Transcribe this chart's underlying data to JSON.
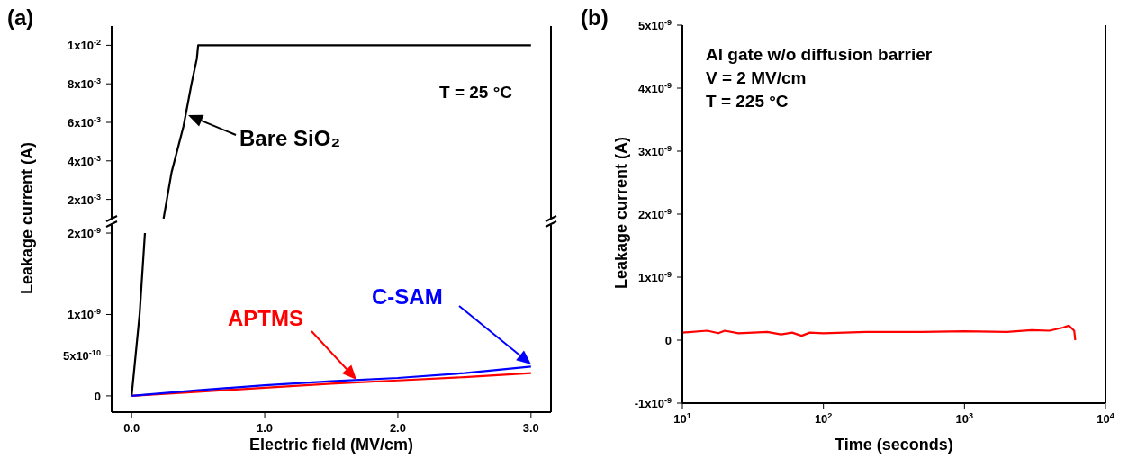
{
  "chart_data": [
    {
      "type": "line",
      "title": "(a)",
      "annotations": [
        "T = 25 °C"
      ],
      "xlim": [
        -0.15,
        3.15
      ],
      "ylim": [
        0.001,
        0.011
      ],
      "yticks": [
        {
          "value": 0.002,
          "label": "2x10$^{-3}$"
        },
        {
          "value": 0.004,
          "label": "4x10$^{-3}$"
        },
        {
          "value": 0.006,
          "label": "6x10$^{-3}$"
        },
        {
          "value": 0.008,
          "label": "8x10$^{-3}$"
        },
        {
          "value": 0.01,
          "label": "1x10$^{-2}$"
        }
      ],
      "tick_labels": "y",
      "series": [
        {
          "name": "Bare SiO₂",
          "color": "#000000",
          "x": [
            0.24,
            0.3,
            0.39,
            0.45,
            0.49,
            0.5,
            3.0
          ],
          "values": [
            0.001,
            0.0034,
            0.0058,
            0.008,
            0.0093,
            0.01,
            0.01
          ]
        }
      ]
    },
    {
      "type": "line",
      "xlabel": "Electric field (MV/cm)",
      "ylabel": "Leakage current (A)",
      "xlim": [
        -0.15,
        3.15
      ],
      "xticks": [
        {
          "value": 0,
          "label": "0.0"
        },
        {
          "value": 1,
          "label": "1.0"
        },
        {
          "value": 2,
          "label": "2.0"
        },
        {
          "value": 3,
          "label": "3.0"
        }
      ],
      "ylim": [
        -2e-10,
        2.1e-09
      ],
      "yticks": [
        0,
        {
          "value": 5e-10,
          "label": "5x10$^{-10}$"
        },
        {
          "value": 1e-09,
          "label": "1x10$^{-9}$"
        },
        {
          "value": 2e-09,
          "label": "2x10$^{-9}$"
        }
      ],
      "series": [
        {
          "color": "#000000",
          "x": [
            0,
            0.03,
            0.06,
            0.1
          ],
          "values": [
            0,
            5e-10,
            1e-09,
            2e-09
          ]
        },
        {
          "name": "APTMS",
          "color": "#ff0000",
          "x": [
            0,
            0.5,
            1,
            1.5,
            2,
            2.5,
            3
          ],
          "values": [
            0,
            5e-11,
            1e-10,
            1.5e-10,
            1.9e-10,
            2.3e-10,
            2.8e-10
          ]
        },
        {
          "name": "C-SAM",
          "color": "#0000ff",
          "x": [
            0,
            0.5,
            1,
            1.5,
            2,
            2.5,
            3
          ],
          "values": [
            0,
            7e-11,
            1.3e-10,
            1.8e-10,
            2.2e-10,
            2.8e-10,
            3.6e-10
          ]
        }
      ]
    },
    {
      "type": "line",
      "title": "(b)",
      "xlabel": "Time (seconds)",
      "ylabel": "Leakage current (A)",
      "annotations": [
        "Al gate w/o diffusion barrier",
        "V = 2 MV/cm",
        "T = 225 °C"
      ],
      "log": "x",
      "xlim": [
        10,
        10000
      ],
      "xticks": [
        {
          "value": 10,
          "label": "10$^{1}$"
        },
        {
          "value": 100,
          "label": "10$^{2}$"
        },
        {
          "value": 1000,
          "label": "10$^{3}$"
        },
        {
          "value": 10000,
          "label": "10$^{4}$"
        }
      ],
      "ylim": [
        -1e-09,
        5e-09
      ],
      "yticks": [
        {
          "value": -1e-09,
          "label": "-1x10$^{-9}$"
        },
        0,
        {
          "value": 1e-09,
          "label": "1x10$^{-9}$"
        },
        {
          "value": 2e-09,
          "label": "2x10$^{-9}$"
        },
        {
          "value": 3e-09,
          "label": "3x10$^{-9}$"
        },
        {
          "value": 4e-09,
          "label": "4x10$^{-9}$"
        },
        {
          "value": 5e-09,
          "label": "5x10$^{-9}$"
        }
      ],
      "series": [
        {
          "color": "#ff0000",
          "x": [
            10,
            15,
            18,
            20,
            25,
            40,
            50,
            60,
            70,
            80,
            100,
            200,
            500,
            1000,
            2000,
            3000,
            4000,
            5000,
            5500,
            6000,
            6100
          ],
          "values": [
            1.2e-10,
            1.5e-10,
            1.1e-10,
            1.5e-10,
            1.1e-10,
            1.3e-10,
            9e-11,
            1.2e-10,
            7e-11,
            1.2e-10,
            1.1e-10,
            1.3e-10,
            1.3e-10,
            1.4e-10,
            1.3e-10,
            1.6e-10,
            1.5e-10,
            2e-10,
            2.3e-10,
            1.5e-10,
            0
          ]
        }
      ]
    }
  ]
}
